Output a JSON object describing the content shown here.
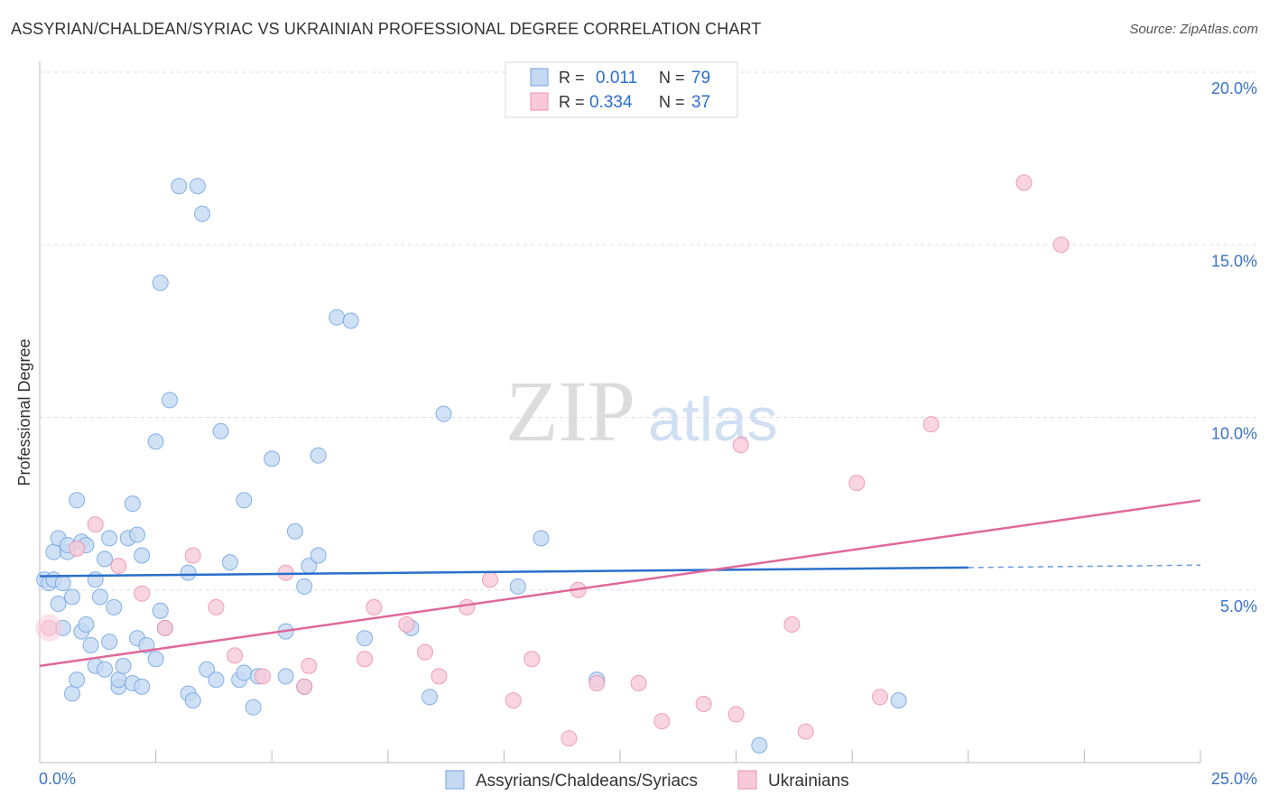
{
  "chart_data": {
    "type": "scatter",
    "title": "ASSYRIAN/CHALDEAN/SYRIAC VS UKRAINIAN PROFESSIONAL DEGREE CORRELATION CHART",
    "source": "Source: ZipAtlas.com",
    "watermark": {
      "zip": "ZIP",
      "atlas": "atlas"
    },
    "xlabel": "",
    "ylabel": "Professional Degree",
    "xlim": [
      0,
      25
    ],
    "ylim": [
      0,
      20
    ],
    "x_tick_labels": [
      "0.0%",
      "25.0%"
    ],
    "y_ticks": [
      5,
      10,
      15,
      20
    ],
    "y_tick_labels": [
      "5.0%",
      "10.0%",
      "15.0%",
      "20.0%"
    ],
    "legend_position": "top-center",
    "series": [
      {
        "name": "Assyrians/Chaldeans/Syriacs",
        "color": "#6fa3e3",
        "fill": "#c5d9f3",
        "line_color": "#2a6fcb",
        "R": "0.011",
        "N": "79",
        "r_label": "R =",
        "n_label": "N =",
        "trend": {
          "x0": 0,
          "y0": 5.4,
          "x1": 20,
          "y1": 5.65,
          "dash_to_x": 25,
          "dash_to_y": 5.72
        },
        "points": [
          [
            0.1,
            5.3
          ],
          [
            0.2,
            5.2
          ],
          [
            0.3,
            5.3
          ],
          [
            0.3,
            6.1
          ],
          [
            0.4,
            4.6
          ],
          [
            0.4,
            6.5
          ],
          [
            0.5,
            3.9
          ],
          [
            0.5,
            5.2
          ],
          [
            0.6,
            6.1
          ],
          [
            0.6,
            6.3
          ],
          [
            0.7,
            4.8
          ],
          [
            0.7,
            2.0
          ],
          [
            0.8,
            2.4
          ],
          [
            0.8,
            7.6
          ],
          [
            0.9,
            6.4
          ],
          [
            0.9,
            3.8
          ],
          [
            1.0,
            4.0
          ],
          [
            1.0,
            6.3
          ],
          [
            1.1,
            3.4
          ],
          [
            1.2,
            5.3
          ],
          [
            1.2,
            2.8
          ],
          [
            1.3,
            4.8
          ],
          [
            1.4,
            2.7
          ],
          [
            1.4,
            5.9
          ],
          [
            1.5,
            3.5
          ],
          [
            1.5,
            6.5
          ],
          [
            1.6,
            4.5
          ],
          [
            1.7,
            2.2
          ],
          [
            1.7,
            2.4
          ],
          [
            1.8,
            2.8
          ],
          [
            1.9,
            6.5
          ],
          [
            2.0,
            2.3
          ],
          [
            2.0,
            7.5
          ],
          [
            2.1,
            3.6
          ],
          [
            2.1,
            6.6
          ],
          [
            2.2,
            6.0
          ],
          [
            2.2,
            2.2
          ],
          [
            2.3,
            3.4
          ],
          [
            2.5,
            3.0
          ],
          [
            2.5,
            9.3
          ],
          [
            2.6,
            4.4
          ],
          [
            2.6,
            13.9
          ],
          [
            2.7,
            3.9
          ],
          [
            2.8,
            10.5
          ],
          [
            3.0,
            16.7
          ],
          [
            3.2,
            2.0
          ],
          [
            3.2,
            5.5
          ],
          [
            3.3,
            1.8
          ],
          [
            3.4,
            16.7
          ],
          [
            3.5,
            15.9
          ],
          [
            3.6,
            2.7
          ],
          [
            3.8,
            2.4
          ],
          [
            3.9,
            9.6
          ],
          [
            4.1,
            5.8
          ],
          [
            4.3,
            2.4
          ],
          [
            4.4,
            7.6
          ],
          [
            4.4,
            2.6
          ],
          [
            4.6,
            1.6
          ],
          [
            4.7,
            2.5
          ],
          [
            5.0,
            8.8
          ],
          [
            5.3,
            3.8
          ],
          [
            5.3,
            2.5
          ],
          [
            5.5,
            6.7
          ],
          [
            5.7,
            2.2
          ],
          [
            5.7,
            5.1
          ],
          [
            5.8,
            5.7
          ],
          [
            6.0,
            6.0
          ],
          [
            6.0,
            8.9
          ],
          [
            6.4,
            12.9
          ],
          [
            6.7,
            12.8
          ],
          [
            7.0,
            3.6
          ],
          [
            8.0,
            3.9
          ],
          [
            8.4,
            1.9
          ],
          [
            8.7,
            10.1
          ],
          [
            10.3,
            5.1
          ],
          [
            10.8,
            6.5
          ],
          [
            12.0,
            2.4
          ],
          [
            15.5,
            0.5
          ],
          [
            18.5,
            1.8
          ]
        ]
      },
      {
        "name": "Ukrainians",
        "color": "#ec8fae",
        "fill": "#f8cad9",
        "line_color": "#e0689a",
        "R": "0.334",
        "N": "37",
        "r_label": "R =",
        "n_label": "N =",
        "trend": {
          "x0": 0,
          "y0": 2.8,
          "x1": 25,
          "y1": 7.6
        },
        "points": [
          [
            0.2,
            3.9
          ],
          [
            0.8,
            6.2
          ],
          [
            1.2,
            6.9
          ],
          [
            1.7,
            5.7
          ],
          [
            2.2,
            4.9
          ],
          [
            2.7,
            3.9
          ],
          [
            3.3,
            6.0
          ],
          [
            3.8,
            4.5
          ],
          [
            4.2,
            3.1
          ],
          [
            4.8,
            2.5
          ],
          [
            5.3,
            5.5
          ],
          [
            5.7,
            2.2
          ],
          [
            5.8,
            2.8
          ],
          [
            7.0,
            3.0
          ],
          [
            7.2,
            4.5
          ],
          [
            7.9,
            4.0
          ],
          [
            8.3,
            3.2
          ],
          [
            8.6,
            2.5
          ],
          [
            9.2,
            4.5
          ],
          [
            9.7,
            5.3
          ],
          [
            10.2,
            1.8
          ],
          [
            10.6,
            3.0
          ],
          [
            11.4,
            0.7
          ],
          [
            11.6,
            5.0
          ],
          [
            12.0,
            2.3
          ],
          [
            12.9,
            2.3
          ],
          [
            13.4,
            1.2
          ],
          [
            14.3,
            1.7
          ],
          [
            15.0,
            1.4
          ],
          [
            15.1,
            9.2
          ],
          [
            16.2,
            4.0
          ],
          [
            16.5,
            0.9
          ],
          [
            17.6,
            8.1
          ],
          [
            18.1,
            1.9
          ],
          [
            19.2,
            9.8
          ],
          [
            21.2,
            16.8
          ],
          [
            22.0,
            15.0
          ]
        ]
      }
    ]
  }
}
